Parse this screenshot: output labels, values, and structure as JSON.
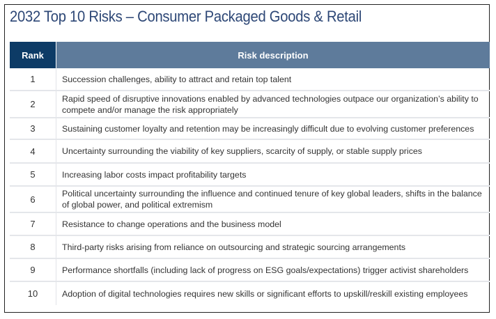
{
  "title": "2032 Top 10 Risks – Consumer Packaged Goods & Retail",
  "table": {
    "headers": {
      "rank": "Rank",
      "description": "Risk description"
    },
    "rows": [
      {
        "rank": "1",
        "description": "Succession challenges, ability to attract and retain top talent"
      },
      {
        "rank": "2",
        "description": "Rapid speed of disruptive innovations enabled by advanced technologies outpace our organization’s ability to compete and/or manage the risk appropriately"
      },
      {
        "rank": "3",
        "description": "Sustaining customer loyalty and retention may be increasingly difficult due to evolving customer preferences"
      },
      {
        "rank": "4",
        "description": "Uncertainty surrounding the viability of key suppliers, scarcity of supply, or stable supply prices"
      },
      {
        "rank": "5",
        "description": "Increasing labor costs impact profitability targets"
      },
      {
        "rank": "6",
        "description": "Political uncertainty surrounding the influence and continued tenure of key global leaders, shifts in the balance of global power, and political extremism"
      },
      {
        "rank": "7",
        "description": "Resistance to change operations and the business model"
      },
      {
        "rank": "8",
        "description": "Third-party risks arising from reliance on outsourcing and strategic sourcing arrangements"
      },
      {
        "rank": "9",
        "description": "Performance shortfalls (including lack of progress on ESG goals/expectations) trigger activist shareholders"
      },
      {
        "rank": "10",
        "description": "Adoption of digital technologies requires new skills or significant efforts to upskill/reskill existing employees"
      }
    ]
  },
  "colors": {
    "title": "#2d4776",
    "rank_header": "#0d3b66",
    "description_header": "#5e7b9b"
  }
}
